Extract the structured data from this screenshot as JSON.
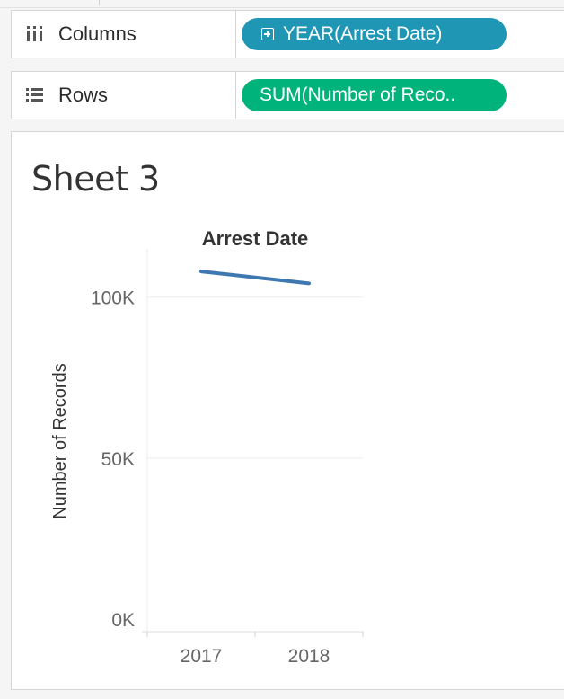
{
  "shelves": {
    "columns": {
      "label": "Columns",
      "icon": "columns-icon",
      "pill": "YEAR(Arrest Date)",
      "pill_color": "#1f96b4"
    },
    "rows": {
      "label": "Rows",
      "icon": "rows-icon",
      "pill": "SUM(Number of Reco..",
      "pill_color": "#00b37a"
    }
  },
  "sheet": {
    "title": "Sheet 3"
  },
  "chart_data": {
    "type": "line",
    "title": "Arrest Date",
    "xlabel": "",
    "ylabel": "Number of Records",
    "categories": [
      "2017",
      "2018"
    ],
    "series": [
      {
        "values": [
          108000,
          104300
        ],
        "color": "#3e78b1"
      }
    ],
    "ylim": [
      0,
      115000
    ],
    "yticks": [
      0,
      50000,
      100000
    ],
    "ytick_labels": [
      "0K",
      "50K",
      "100K"
    ],
    "grid": true
  }
}
